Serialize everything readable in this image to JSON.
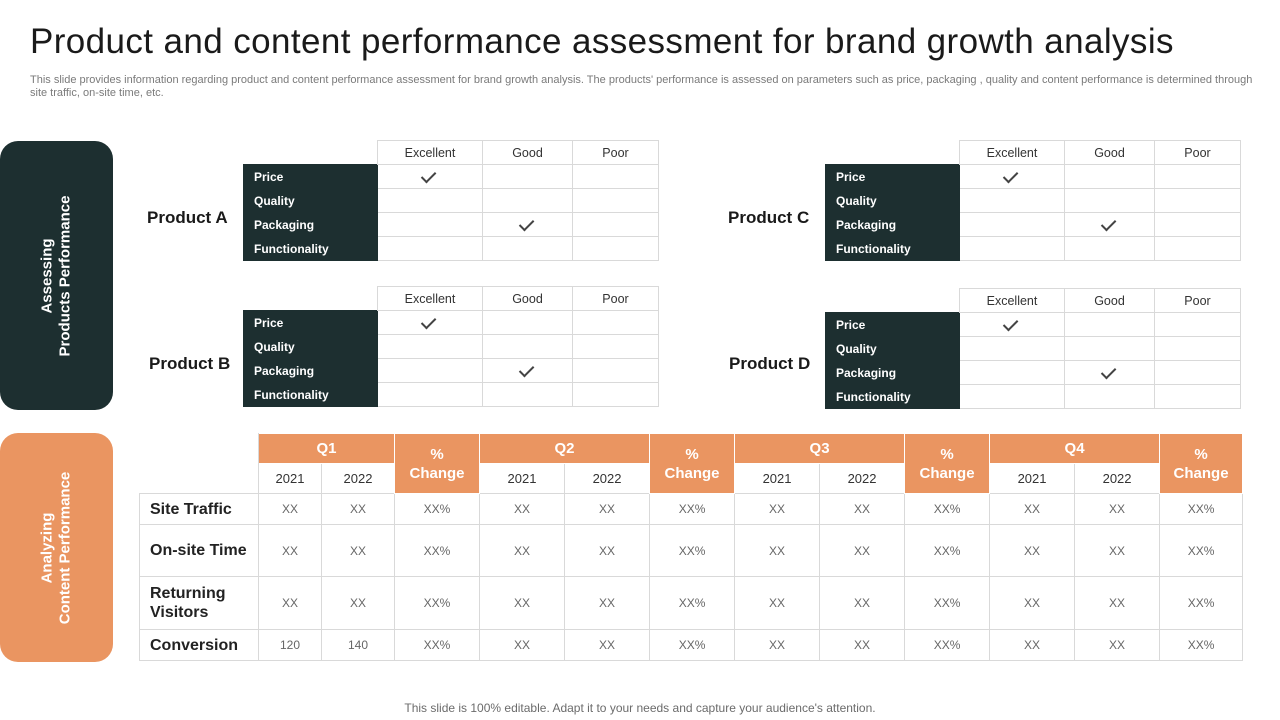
{
  "title": "Product and content performance assessment for brand growth analysis",
  "subtitle": "This slide provides information regarding product and content performance assessment for brand growth analysis. The products' performance is assessed  on parameters such as price, packaging , quality and content performance is determined through site traffic, on-site time, etc.",
  "side_panels": {
    "products": [
      "Assessing",
      "Products Performance"
    ],
    "content": [
      "Analyzing",
      "Content Performance"
    ]
  },
  "rating_headers": [
    "Excellent",
    "Good",
    "Poor"
  ],
  "parameters": [
    "Price",
    "Quality",
    "Packaging",
    "Functionality"
  ],
  "products": [
    {
      "name": "Product A",
      "ratings": [
        "Excellent",
        "",
        "Good",
        ""
      ]
    },
    {
      "name": "Product B",
      "ratings": [
        "Excellent",
        "",
        "Good",
        ""
      ]
    },
    {
      "name": "Product C",
      "ratings": [
        "Excellent",
        "",
        "Good",
        ""
      ]
    },
    {
      "name": "Product D",
      "ratings": [
        "Excellent",
        "",
        "Good",
        ""
      ]
    }
  ],
  "content_table": {
    "quarters": [
      "Q1",
      "Q2",
      "Q3",
      "Q4"
    ],
    "change_label": "% Change",
    "change_label_parts": [
      "%",
      "Change"
    ],
    "years": [
      "2021",
      "2022"
    ],
    "rows": [
      {
        "metric": "Site Traffic",
        "values": [
          "XX",
          "XX",
          "XX%",
          "XX",
          "XX",
          "XX%",
          "XX",
          "XX",
          "XX%",
          "XX",
          "XX",
          "XX%"
        ]
      },
      {
        "metric": "On-site Time",
        "values": [
          "XX",
          "XX",
          "XX%",
          "XX",
          "XX",
          "XX%",
          "XX",
          "XX",
          "XX%",
          "XX",
          "XX",
          "XX%"
        ]
      },
      {
        "metric": "Returning Visitors",
        "metric_lines": [
          "Returning",
          "Visitors"
        ],
        "values": [
          "XX",
          "XX",
          "XX%",
          "XX",
          "XX",
          "XX%",
          "XX",
          "XX",
          "XX%",
          "XX",
          "XX",
          "XX%"
        ]
      },
      {
        "metric": "Conversion",
        "values": [
          "120",
          "140",
          "XX%",
          "XX",
          "XX",
          "XX%",
          "XX",
          "XX",
          "XX%",
          "XX",
          "XX",
          "XX%"
        ]
      }
    ]
  },
  "footer": "This slide is 100% editable. Adapt it to your needs and capture your audience's attention."
}
